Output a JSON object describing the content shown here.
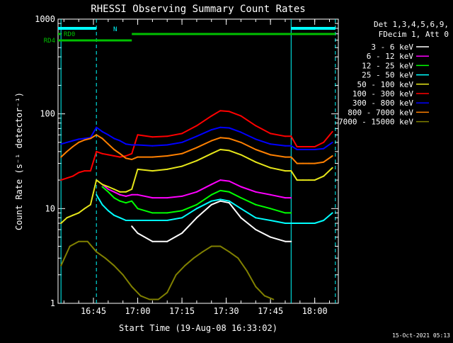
{
  "chart_data": {
    "type": "line",
    "title": "RHESSI Observing Summary Count Rates",
    "xlabel": "Start Time (19-Aug-08 16:33:02)",
    "ylabel": "Count Rate (s⁻¹ detector⁻¹)",
    "x_ticks": [
      "16:45",
      "17:00",
      "17:15",
      "17:30",
      "17:45",
      "18:00"
    ],
    "xlim": [
      "16:33",
      "18:08"
    ],
    "y_scale": "log",
    "ylim": [
      1,
      1000
    ],
    "y_ticks": [
      "1",
      "10",
      "100",
      "1000"
    ],
    "legend_header": [
      "Det 1,3,4,5,6,9,",
      "FDecim 1, Att 0"
    ],
    "legend_position": "right",
    "series": [
      {
        "name": "3 - 6 keV",
        "color": "#ffffff",
        "x": [
          "16:34",
          "16:35",
          "16:38",
          "16:40",
          "16:42",
          "16:44",
          "16:46",
          "16:48",
          "16:50",
          "16:52",
          "16:54",
          "16:56",
          "16:58",
          "17:00",
          "17:05",
          "17:10",
          "17:15",
          "17:20",
          "17:25",
          "17:28",
          "17:31",
          "17:35",
          "17:40",
          "17:45",
          "17:50",
          "17:52"
        ],
        "y": [
          null,
          null,
          null,
          null,
          null,
          null,
          null,
          null,
          null,
          null,
          null,
          null,
          6.5,
          5.5,
          4.5,
          4.5,
          5.5,
          8,
          11,
          12,
          11.5,
          8,
          6,
          5,
          4.5,
          4.5
        ]
      },
      {
        "name": "6 - 12 keV",
        "color": "#ff00ff",
        "x": [
          "16:48",
          "16:50",
          "16:52",
          "16:54",
          "16:56",
          "16:58",
          "17:00",
          "17:05",
          "17:10",
          "17:15",
          "17:20",
          "17:25",
          "17:28",
          "17:31",
          "17:35",
          "17:40",
          "17:45",
          "17:50",
          "17:52"
        ],
        "y": [
          18,
          16,
          15,
          14,
          13.5,
          14,
          14,
          13,
          13,
          13.5,
          15,
          18,
          20,
          19.5,
          17,
          15,
          14,
          13,
          13
        ]
      },
      {
        "name": "12 - 25 keV",
        "color": "#00ff00",
        "x": [
          "16:48",
          "16:50",
          "16:52",
          "16:54",
          "16:56",
          "16:58",
          "17:00",
          "17:05",
          "17:10",
          "17:15",
          "17:20",
          "17:25",
          "17:28",
          "17:31",
          "17:35",
          "17:40",
          "17:45",
          "17:50",
          "17:52"
        ],
        "y": [
          17,
          15,
          13,
          12,
          11.5,
          12,
          10,
          9,
          9,
          9.5,
          11,
          14,
          15.5,
          15,
          13,
          11,
          10,
          9,
          9
        ]
      },
      {
        "name": "25 - 50 keV",
        "color": "#00ffff",
        "x": [
          "16:46",
          "16:48",
          "16:50",
          "16:52",
          "16:54",
          "16:56",
          "16:58",
          "17:00",
          "17:05",
          "17:10",
          "17:15",
          "17:20",
          "17:25",
          "17:28",
          "17:31",
          "17:35",
          "17:40",
          "17:45",
          "17:50",
          "17:52",
          "17:54",
          "17:56",
          "17:58",
          "18:00",
          "18:03",
          "18:06"
        ],
        "y": [
          14,
          11,
          9.5,
          8.5,
          8,
          7.5,
          7.5,
          7.5,
          7.5,
          7.5,
          8,
          10,
          12,
          12.5,
          12,
          10,
          8,
          7.5,
          7,
          7,
          7,
          7,
          7,
          7,
          7.5,
          9
        ]
      },
      {
        "name": "50 - 100 keV",
        "color": "#e6e61a",
        "x": [
          "16:34",
          "16:36",
          "16:38",
          "16:40",
          "16:42",
          "16:44",
          "16:46",
          "16:48",
          "16:50",
          "16:52",
          "16:54",
          "16:56",
          "16:58",
          "17:00",
          "17:05",
          "17:10",
          "17:15",
          "17:20",
          "17:25",
          "17:28",
          "17:31",
          "17:35",
          "17:40",
          "17:45",
          "17:50",
          "17:52",
          "17:54",
          "17:56",
          "17:58",
          "18:00",
          "18:03",
          "18:06"
        ],
        "y": [
          7,
          8,
          8.5,
          9,
          10,
          11,
          20,
          18,
          17,
          16,
          15,
          15,
          16,
          26,
          25,
          26,
          28,
          32,
          38,
          42,
          41,
          37,
          31,
          27,
          25,
          25,
          20,
          20,
          20,
          20,
          22,
          27
        ]
      },
      {
        "name": "100 - 300 keV",
        "color": "#ff0000",
        "x": [
          "16:34",
          "16:36",
          "16:38",
          "16:40",
          "16:42",
          "16:44",
          "16:46",
          "16:48",
          "16:50",
          "16:52",
          "16:54",
          "16:56",
          "16:58",
          "17:00",
          "17:05",
          "17:10",
          "17:15",
          "17:20",
          "17:25",
          "17:28",
          "17:31",
          "17:35",
          "17:40",
          "17:45",
          "17:50",
          "17:52",
          "17:54",
          "17:56",
          "17:58",
          "18:00",
          "18:03",
          "18:06"
        ],
        "y": [
          20,
          21,
          22,
          24,
          25,
          25,
          40,
          38,
          37,
          36,
          35,
          36,
          38,
          60,
          57,
          58,
          62,
          75,
          95,
          108,
          106,
          95,
          75,
          62,
          58,
          58,
          45,
          45,
          45,
          45,
          50,
          65
        ]
      },
      {
        "name": "300 - 800 keV",
        "color": "#0000ff",
        "x": [
          "16:34",
          "16:36",
          "16:38",
          "16:40",
          "16:42",
          "16:44",
          "16:46",
          "16:48",
          "16:50",
          "16:52",
          "16:54",
          "16:56",
          "16:58",
          "17:00",
          "17:05",
          "17:10",
          "17:15",
          "17:20",
          "17:25",
          "17:28",
          "17:31",
          "17:35",
          "17:40",
          "17:45",
          "17:50",
          "17:52",
          "17:54",
          "17:56",
          "17:58",
          "18:00",
          "18:03",
          "18:06"
        ],
        "y": [
          48,
          50,
          52,
          54,
          55,
          56,
          72,
          65,
          60,
          55,
          52,
          48,
          47,
          47,
          46,
          47,
          50,
          58,
          68,
          72,
          71,
          64,
          54,
          48,
          46,
          46,
          42,
          42,
          42,
          42,
          43,
          50
        ]
      },
      {
        "name": "800 - 7000 keV",
        "color": "#ff8000",
        "x": [
          "16:34",
          "16:36",
          "16:38",
          "16:40",
          "16:42",
          "16:44",
          "16:46",
          "16:48",
          "16:50",
          "16:52",
          "16:54",
          "16:56",
          "16:58",
          "17:00",
          "17:05",
          "17:10",
          "17:15",
          "17:20",
          "17:25",
          "17:28",
          "17:31",
          "17:35",
          "17:40",
          "17:45",
          "17:50",
          "17:52",
          "17:54",
          "17:56",
          "17:58",
          "18:00",
          "18:03",
          "18:06"
        ],
        "y": [
          35,
          40,
          45,
          50,
          53,
          55,
          60,
          55,
          48,
          42,
          38,
          34,
          33,
          35,
          35,
          36,
          38,
          44,
          52,
          56,
          55,
          50,
          42,
          37,
          35,
          35,
          30,
          30,
          30,
          30,
          31,
          36
        ]
      },
      {
        "name": "7000 - 15000 keV",
        "color": "#808000",
        "x": [
          "16:34",
          "16:37",
          "16:40",
          "16:43",
          "16:46",
          "16:49",
          "16:52",
          "16:55",
          "16:58",
          "17:01",
          "17:04",
          "17:07",
          "17:10",
          "17:13",
          "17:16",
          "17:19",
          "17:22",
          "17:25",
          "17:28",
          "17:31",
          "17:34",
          "17:37",
          "17:40",
          "17:43",
          "17:46"
        ],
        "y": [
          2.5,
          4,
          4.5,
          4.5,
          3.5,
          3,
          2.5,
          2,
          1.5,
          1.2,
          1.1,
          1.1,
          1.3,
          2,
          2.5,
          3,
          3.5,
          4,
          4,
          3.5,
          3,
          2.2,
          1.5,
          1.2,
          1.1
        ]
      }
    ],
    "annotations": {
      "flags": [
        {
          "label": "RD0",
          "color": "#00c000"
        },
        {
          "label": "RD4",
          "color": "#00c000"
        },
        {
          "label": "N",
          "color": "#00ffff"
        }
      ],
      "vertical_markers_dashed": [
        "16:46",
        "18:07"
      ],
      "vertical_markers_solid": [
        "16:34",
        "17:52"
      ]
    },
    "footer_date": "15-Oct-2021 05:13"
  }
}
